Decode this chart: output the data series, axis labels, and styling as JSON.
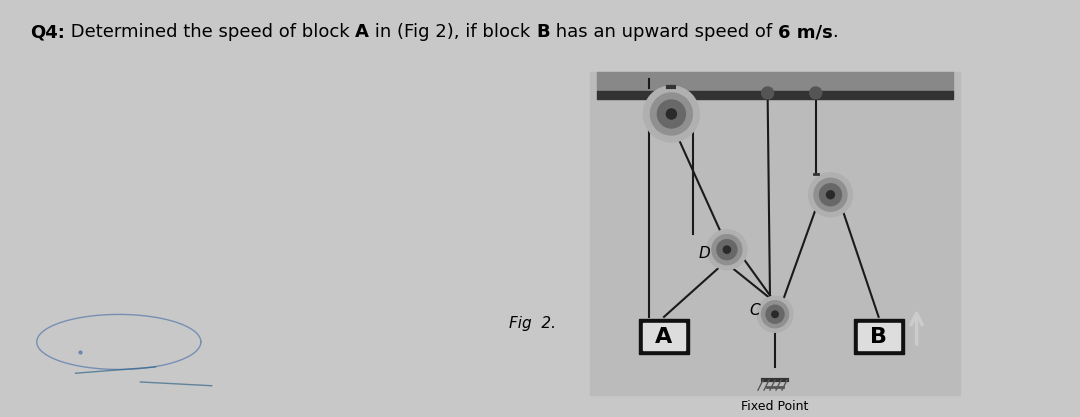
{
  "bg_color": "#c8c8c8",
  "title_parts": [
    {
      "text": "Q4:",
      "bold": true
    },
    {
      "text": " Determined the speed of block ",
      "bold": false
    },
    {
      "text": "A",
      "bold": true
    },
    {
      "text": " in (Fig 2), if block ",
      "bold": false
    },
    {
      "text": "B",
      "bold": true
    },
    {
      "text": " has an upward speed of ",
      "bold": false
    },
    {
      "text": "6 m/s",
      "bold": true
    },
    {
      "text": ".",
      "bold": false
    }
  ],
  "title_fontsize": 13,
  "fig_label": "Fig  2.",
  "rope_color": "#1a1a1a",
  "pulley_outer": "#b0b0b0",
  "pulley_mid": "#909090",
  "pulley_inner": "#686868",
  "pulley_hub": "#2a2a2a",
  "ceiling_top": "#999999",
  "ceiling_bar": "#444444",
  "block_outer": "#111111",
  "block_inner": "#dddddd",
  "anchor_color": "#555555",
  "arrow_color": "#cccccc",
  "diagram_bg": "#c0c0c0"
}
